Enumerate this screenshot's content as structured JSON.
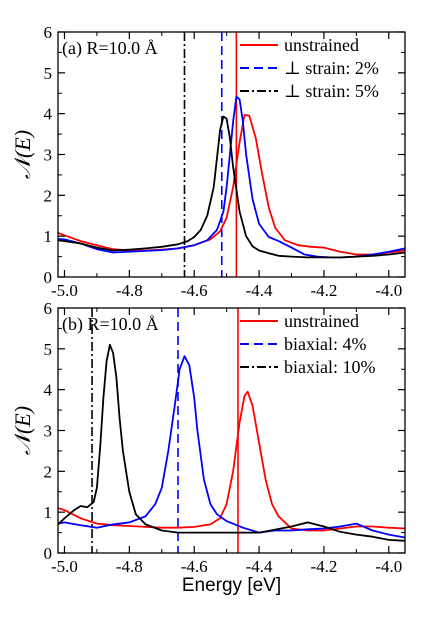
{
  "chart_data": [
    {
      "type": "line",
      "annotation": "(a) R=10.0 Å",
      "ylabel": "𝒩(E)",
      "xlabel": "",
      "xlim": [
        -5.02,
        -3.95
      ],
      "ylim": [
        0,
        6
      ],
      "xticks": [
        -5.0,
        -4.8,
        -4.6,
        -4.4,
        -4.2,
        -4.0
      ],
      "xtick_labels": [
        "-5.0",
        "-4.8",
        "-4.6",
        "-4.4",
        "-4.2",
        "-4.0"
      ],
      "yticks": [
        0,
        1,
        2,
        3,
        4,
        5,
        6
      ],
      "ytick_labels": [
        "0",
        "1",
        "2",
        "3",
        "4",
        "5",
        "6"
      ],
      "grid": false,
      "legend": "top-right",
      "series": [
        {
          "name": "unstrained",
          "color": "#ff0000",
          "dash": "solid",
          "vline": -4.47,
          "x": [
            -5.02,
            -5.0,
            -4.95,
            -4.9,
            -4.85,
            -4.8,
            -4.75,
            -4.7,
            -4.65,
            -4.6,
            -4.55,
            -4.52,
            -4.5,
            -4.48,
            -4.46,
            -4.445,
            -4.43,
            -4.41,
            -4.39,
            -4.37,
            -4.35,
            -4.32,
            -4.28,
            -4.24,
            -4.2,
            -4.15,
            -4.1,
            -4.05,
            -4.0,
            -3.95
          ],
          "y": [
            1.08,
            1.02,
            0.88,
            0.78,
            0.68,
            0.65,
            0.65,
            0.67,
            0.7,
            0.78,
            0.92,
            1.12,
            1.45,
            2.2,
            3.3,
            3.97,
            3.95,
            3.4,
            2.5,
            1.7,
            1.2,
            0.9,
            0.78,
            0.74,
            0.72,
            0.62,
            0.55,
            0.55,
            0.6,
            0.65
          ]
        },
        {
          "name": "⊥ strain: 2%",
          "color": "#0000ff",
          "dash": "dashed",
          "vline": -4.515,
          "x": [
            -5.02,
            -5.0,
            -4.95,
            -4.9,
            -4.85,
            -4.8,
            -4.75,
            -4.7,
            -4.65,
            -4.6,
            -4.56,
            -4.53,
            -4.51,
            -4.5,
            -4.49,
            -4.48,
            -4.47,
            -4.46,
            -4.45,
            -4.44,
            -4.42,
            -4.4,
            -4.37,
            -4.34,
            -4.3,
            -4.26,
            -4.22,
            -4.18,
            -4.14,
            -4.1,
            -4.05,
            -4.0,
            -3.95
          ],
          "y": [
            0.93,
            0.92,
            0.82,
            0.68,
            0.6,
            0.62,
            0.64,
            0.66,
            0.7,
            0.78,
            0.9,
            1.15,
            1.6,
            2.2,
            3.0,
            3.8,
            4.42,
            4.35,
            3.8,
            3.0,
            1.9,
            1.3,
            0.98,
            0.88,
            0.72,
            0.55,
            0.5,
            0.48,
            0.48,
            0.5,
            0.55,
            0.62,
            0.7
          ]
        },
        {
          "name": "⊥ strain: 5%",
          "color": "#000000",
          "dash": "dashdot",
          "vline": -4.63,
          "x": [
            -5.02,
            -5.0,
            -4.95,
            -4.9,
            -4.85,
            -4.8,
            -4.75,
            -4.7,
            -4.65,
            -4.62,
            -4.6,
            -4.58,
            -4.56,
            -4.54,
            -4.53,
            -4.52,
            -4.51,
            -4.5,
            -4.49,
            -4.48,
            -4.46,
            -4.44,
            -4.42,
            -4.4,
            -4.37,
            -4.34,
            -4.3,
            -4.25,
            -4.2,
            -4.15,
            -4.1,
            -4.05,
            -4.0,
            -3.95
          ],
          "y": [
            0.9,
            0.88,
            0.82,
            0.72,
            0.65,
            0.67,
            0.7,
            0.74,
            0.8,
            0.88,
            0.98,
            1.15,
            1.5,
            2.2,
            2.9,
            3.6,
            3.93,
            3.88,
            3.4,
            2.7,
            1.6,
            1.0,
            0.75,
            0.65,
            0.58,
            0.52,
            0.5,
            0.48,
            0.48,
            0.48,
            0.5,
            0.52,
            0.55,
            0.6
          ]
        }
      ]
    },
    {
      "type": "line",
      "annotation": "(b) R=10.0 Å",
      "ylabel": "𝒩(E)",
      "xlabel": "Energy [eV]",
      "xlim": [
        -5.02,
        -3.95
      ],
      "ylim": [
        0,
        6
      ],
      "xticks": [
        -5.0,
        -4.8,
        -4.6,
        -4.4,
        -4.2,
        -4.0
      ],
      "xtick_labels": [
        "-5.0",
        "-4.8",
        "-4.6",
        "-4.4",
        "-4.2",
        "-4.0"
      ],
      "yticks": [
        0,
        1,
        2,
        3,
        4,
        5,
        6
      ],
      "ytick_labels": [
        "0",
        "1",
        "2",
        "3",
        "4",
        "5",
        "6"
      ],
      "grid": false,
      "legend": "top-right",
      "series": [
        {
          "name": "unstrained",
          "color": "#ff0000",
          "dash": "solid",
          "vline": -4.465,
          "x": [
            -5.02,
            -5.0,
            -4.95,
            -4.9,
            -4.85,
            -4.8,
            -4.75,
            -4.7,
            -4.65,
            -4.6,
            -4.55,
            -4.52,
            -4.5,
            -4.48,
            -4.46,
            -4.445,
            -4.435,
            -4.42,
            -4.4,
            -4.38,
            -4.36,
            -4.34,
            -4.3,
            -4.25,
            -4.2,
            -4.15,
            -4.1,
            -4.05,
            -4.0,
            -3.95
          ],
          "y": [
            1.1,
            1.05,
            0.85,
            0.72,
            0.68,
            0.66,
            0.64,
            0.62,
            0.62,
            0.64,
            0.7,
            0.85,
            1.2,
            2.0,
            3.2,
            3.85,
            3.95,
            3.6,
            2.7,
            1.8,
            1.2,
            0.9,
            0.6,
            0.55,
            0.55,
            0.6,
            0.65,
            0.65,
            0.62,
            0.6
          ]
        },
        {
          "name": "biaxial: 4%",
          "color": "#0000ff",
          "dash": "dashed",
          "vline": -4.65,
          "x": [
            -5.02,
            -5.0,
            -4.95,
            -4.9,
            -4.85,
            -4.8,
            -4.75,
            -4.72,
            -4.7,
            -4.68,
            -4.66,
            -4.645,
            -4.63,
            -4.615,
            -4.6,
            -4.59,
            -4.57,
            -4.55,
            -4.53,
            -4.5,
            -4.45,
            -4.4,
            -4.35,
            -4.3,
            -4.25,
            -4.2,
            -4.15,
            -4.1,
            -4.05,
            -4.0,
            -3.95
          ],
          "y": [
            0.72,
            0.75,
            0.68,
            0.62,
            0.7,
            0.75,
            0.9,
            1.2,
            1.6,
            2.5,
            3.6,
            4.5,
            4.82,
            4.6,
            3.8,
            3.0,
            1.8,
            1.2,
            0.95,
            0.78,
            0.62,
            0.5,
            0.55,
            0.55,
            0.58,
            0.6,
            0.65,
            0.72,
            0.55,
            0.45,
            0.38
          ]
        },
        {
          "name": "biaxial: 10%",
          "color": "#000000",
          "dash": "dashdot",
          "vline": -4.915,
          "x": [
            -5.02,
            -5.0,
            -4.97,
            -4.95,
            -4.93,
            -4.91,
            -4.9,
            -4.89,
            -4.88,
            -4.87,
            -4.86,
            -4.85,
            -4.84,
            -4.83,
            -4.82,
            -4.8,
            -4.78,
            -4.75,
            -4.7,
            -4.65,
            -4.6,
            -4.5,
            -4.4,
            -4.3,
            -4.25,
            -4.2,
            -4.15,
            -4.1,
            -4.05,
            -4.0,
            -3.95
          ],
          "y": [
            0.7,
            0.85,
            1.05,
            1.15,
            1.12,
            1.25,
            1.6,
            2.6,
            3.8,
            4.7,
            5.1,
            4.9,
            4.3,
            3.3,
            2.5,
            1.5,
            0.95,
            0.7,
            0.55,
            0.5,
            0.5,
            0.5,
            0.5,
            0.65,
            0.75,
            0.65,
            0.52,
            0.45,
            0.4,
            0.32,
            0.3
          ]
        }
      ]
    }
  ]
}
